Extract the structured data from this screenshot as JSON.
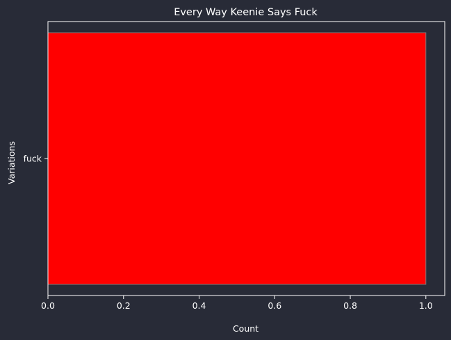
{
  "chart_data": {
    "type": "bar",
    "orientation": "horizontal",
    "title": "Every Way Keenie Says Fuck",
    "xlabel": "Count",
    "ylabel": "Variations",
    "categories": [
      "fuck"
    ],
    "values": [
      1
    ],
    "xlim": [
      0,
      1.05
    ],
    "xticks": [
      "0.0",
      "0.2",
      "0.4",
      "0.6",
      "0.8",
      "1.0"
    ],
    "grid": false,
    "legend": "none",
    "colors": {
      "background": "#282b37",
      "bar": "#ff0000",
      "bar_edge": "#7a7a7a",
      "text": "#ffffff",
      "axes": "#ffffff"
    }
  }
}
